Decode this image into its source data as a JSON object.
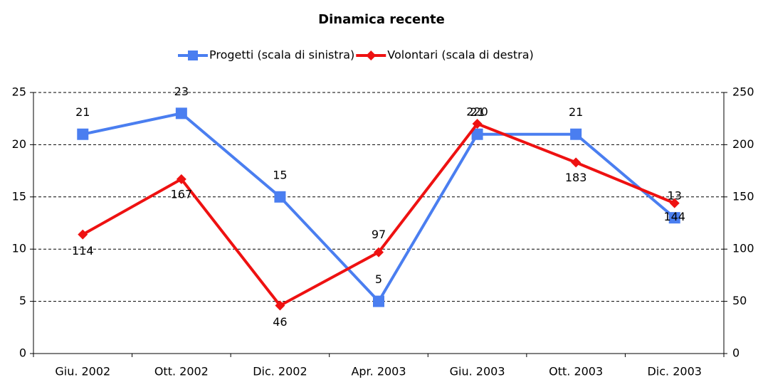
{
  "chart_data": {
    "type": "line",
    "title": "Dinamica recente",
    "categories": [
      "Giu. 2002",
      "Ott. 2002",
      "Dic. 2002",
      "Apr. 2003",
      "Giu. 2003",
      "Ott. 2003",
      "Dic. 2003"
    ],
    "series": [
      {
        "name": "Progetti (scala di sinistra)",
        "color": "#4a7ef0",
        "values": [
          21,
          23,
          15,
          5,
          21,
          21,
          13
        ]
      },
      {
        "name": "Volontari (scala di destra)",
        "color": "#ee1111",
        "axis": "y2",
        "values": [
          114,
          167,
          46,
          97,
          220,
          183,
          144
        ]
      }
    ],
    "ylim": [
      0,
      25
    ],
    "yticks": [
      0,
      5,
      10,
      15,
      20,
      25
    ],
    "y2lim": [
      0,
      250
    ],
    "y2ticks": [
      0,
      50,
      100,
      150,
      200,
      250
    ],
    "grid": true,
    "legend": "top"
  }
}
